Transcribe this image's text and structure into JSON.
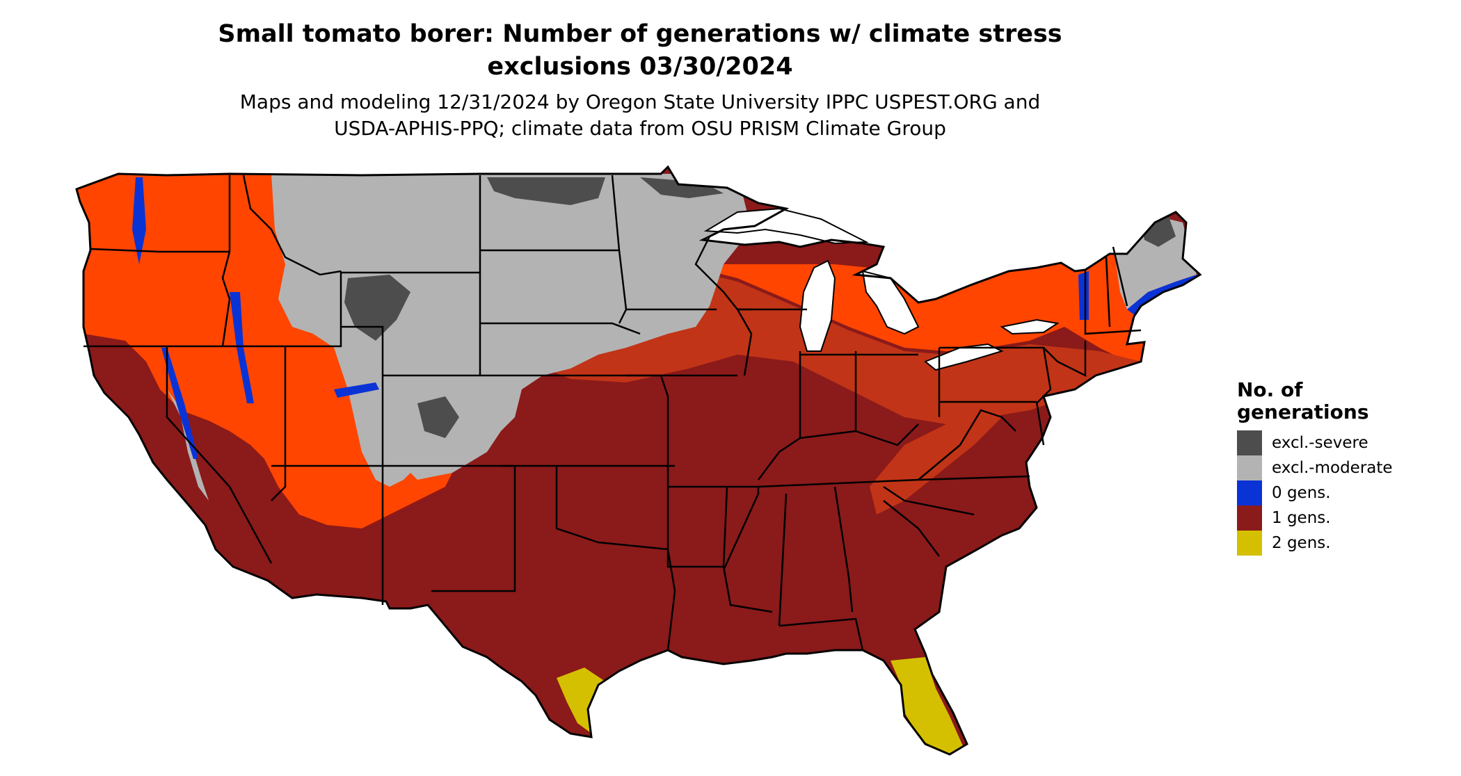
{
  "title_line1": "Small tomato borer: Number of generations w/ climate stress",
  "title_line2": "exclusions 03/30/2024",
  "subtitle_line1": "Maps and modeling 12/31/2024 by Oregon State University IPPC USPEST.ORG and",
  "subtitle_line2": "USDA-APHIS-PPQ; climate data from OSU PRISM Climate Group",
  "legend": {
    "title_line1": "No. of",
    "title_line2": "generations",
    "items": [
      {
        "label": "excl.-severe",
        "color": "#4d4d4d"
      },
      {
        "label": "excl.-moderate",
        "color": "#b3b3b3"
      },
      {
        "label": "0 gens.",
        "color": "#0a33d6"
      },
      {
        "label": "1 gens.",
        "color": "#8b1a1a"
      },
      {
        "label": "2 gens.",
        "color": "#d4c000"
      }
    ]
  },
  "colors": {
    "excl_severe": "#4d4d4d",
    "excl_moderate": "#b3b3b3",
    "zero_gens": "#0a33d6",
    "one_gen_dark": "#8b1a1a",
    "one_gen_mid": "#c23417",
    "one_gen_bright": "#ff4500",
    "two_gens": "#d4c000",
    "borders": "#000000"
  }
}
